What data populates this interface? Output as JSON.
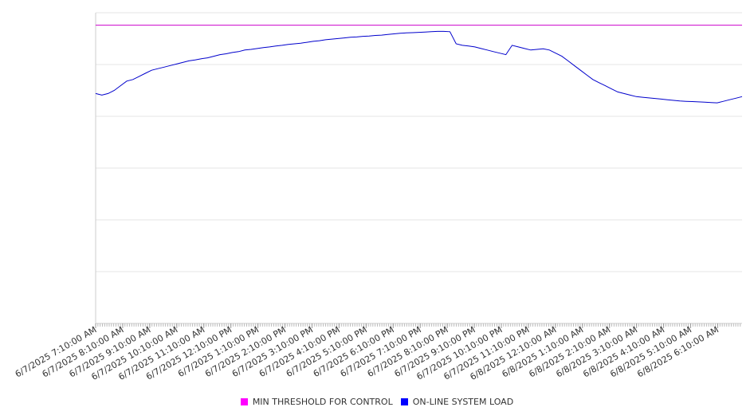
{
  "chart_data": {
    "type": "line",
    "title": "",
    "xlabel": "",
    "ylabel": "",
    "x_tick_labels": [
      "6/7/2025 7:10:00 AM",
      "6/7/2025 8:10:00 AM",
      "6/7/2025 9:10:00 AM",
      "6/7/2025 10:10:00 AM",
      "6/7/2025 11:10:00 AM",
      "6/7/2025 12:10:00 PM",
      "6/7/2025 1:10:00 PM",
      "6/7/2025 2:10:00 PM",
      "6/7/2025 3:10:00 PM",
      "6/7/2025 4:10:00 PM",
      "6/7/2025 5:10:00 PM",
      "6/7/2025 6:10:00 PM",
      "6/7/2025 7:10:00 PM",
      "6/7/2025 8:10:00 PM",
      "6/7/2025 9:10:00 PM",
      "6/7/2025 10:10:00 PM",
      "6/7/2025 11:10:00 PM",
      "6/8/2025 12:10:00 AM",
      "6/8/2025 1:10:00 AM",
      "6/8/2025 2:10:00 AM",
      "6/8/2025 3:10:00 AM",
      "6/8/2025 4:10:00 AM",
      "6/8/2025 5:10:00 AM",
      "6/8/2025 6:10:00 AM"
    ],
    "y_axis": {
      "tick_labels_shown": false,
      "gridlines": 6
    },
    "grid": true,
    "legend_position": "bottom-center",
    "series": [
      {
        "name": "MIN THRESHOLD FOR CONTROL",
        "color": "#cc00cc",
        "style": "flat",
        "values": [
          0.96,
          0.96
        ]
      },
      {
        "name": "ON-LINE SYSTEM LOAD",
        "color": "#0000cc",
        "values": [
          0.74,
          0.735,
          0.74,
          0.75,
          0.765,
          0.78,
          0.785,
          0.795,
          0.805,
          0.815,
          0.82,
          0.825,
          0.83,
          0.835,
          0.84,
          0.845,
          0.848,
          0.852,
          0.855,
          0.86,
          0.865,
          0.868,
          0.872,
          0.875,
          0.88,
          0.882,
          0.885,
          0.888,
          0.89,
          0.893,
          0.895,
          0.898,
          0.9,
          0.902,
          0.905,
          0.908,
          0.91,
          0.913,
          0.915,
          0.917,
          0.919,
          0.921,
          0.922,
          0.924,
          0.925,
          0.927,
          0.928,
          0.93,
          0.932,
          0.934,
          0.935,
          0.936,
          0.937,
          0.938,
          0.939,
          0.94,
          0.94,
          0.939,
          0.9,
          0.895,
          0.893,
          0.89,
          0.885,
          0.88,
          0.875,
          0.87,
          0.865,
          0.895,
          0.89,
          0.885,
          0.88,
          0.882,
          0.884,
          0.88,
          0.87,
          0.86,
          0.845,
          0.83,
          0.815,
          0.8,
          0.785,
          0.775,
          0.765,
          0.755,
          0.745,
          0.74,
          0.735,
          0.73,
          0.728,
          0.726,
          0.724,
          0.722,
          0.72,
          0.718,
          0.716,
          0.715,
          0.714,
          0.713,
          0.712,
          0.711,
          0.71,
          0.715,
          0.72,
          0.725,
          0.73
        ]
      }
    ]
  },
  "legend": {
    "items": [
      {
        "label": "MIN THRESHOLD FOR CONTROL",
        "color": "#ff00ff"
      },
      {
        "label": "ON-LINE SYSTEM LOAD",
        "color": "#0000ff"
      }
    ]
  }
}
